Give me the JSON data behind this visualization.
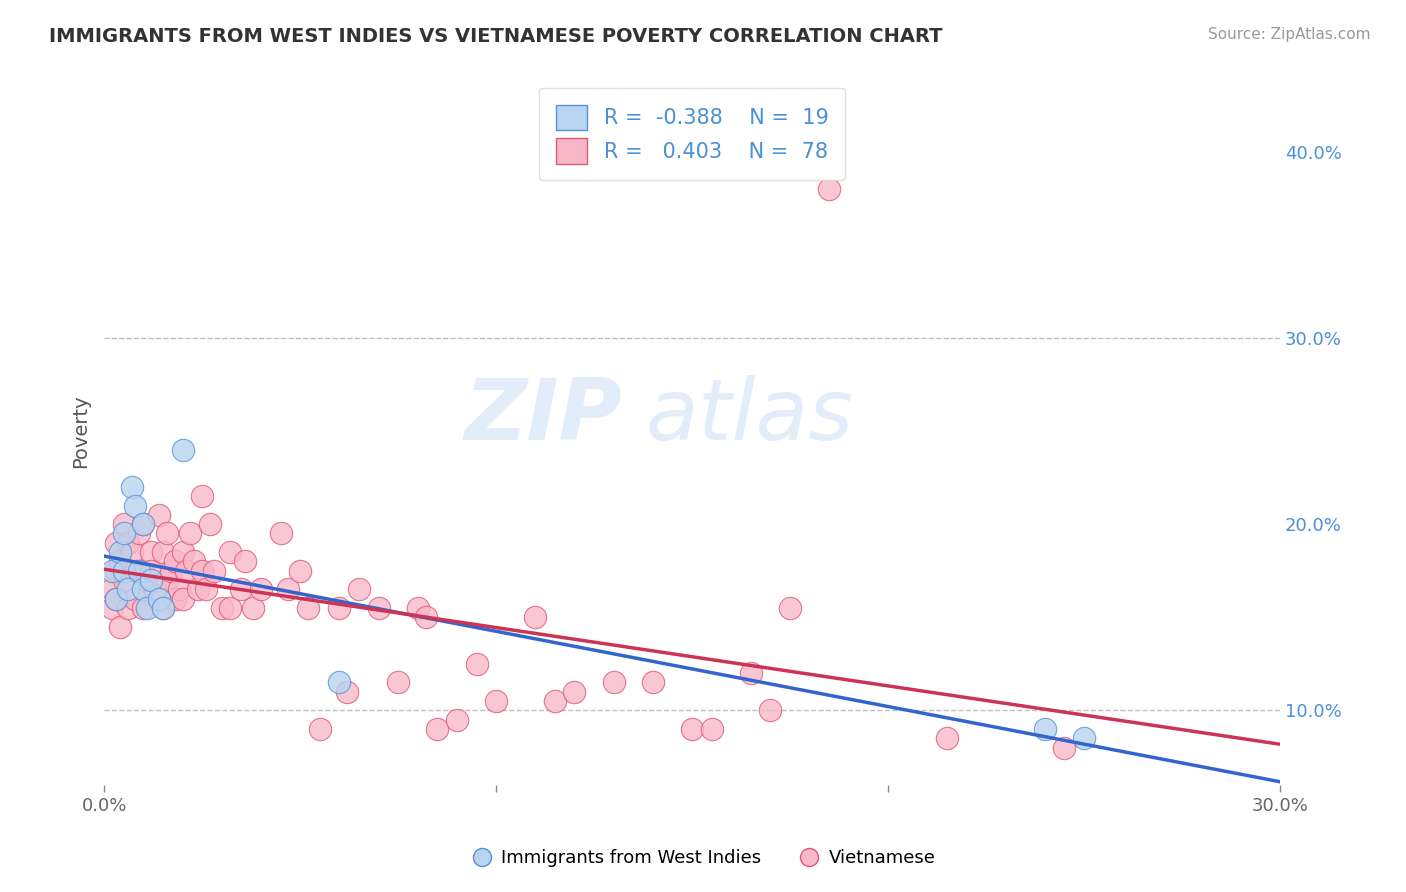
{
  "title": "IMMIGRANTS FROM WEST INDIES VS VIETNAMESE POVERTY CORRELATION CHART",
  "source": "Source: ZipAtlas.com",
  "ylabel": "Poverty",
  "ylabel_right_ticks": [
    "10.0%",
    "20.0%",
    "30.0%",
    "40.0%"
  ],
  "ylabel_right_vals": [
    0.1,
    0.2,
    0.3,
    0.4
  ],
  "xlim": [
    0.0,
    0.3
  ],
  "ylim": [
    0.06,
    0.44
  ],
  "legend_blue_r": "-0.388",
  "legend_blue_n": "19",
  "legend_pink_r": "0.403",
  "legend_pink_n": "78",
  "legend_label_blue": "Immigrants from West Indies",
  "legend_label_pink": "Vietnamese",
  "blue_fill_color": "#b8d4f0",
  "pink_fill_color": "#f8b8c8",
  "blue_edge_color": "#5590d8",
  "pink_edge_color": "#e05878",
  "blue_line_color": "#3366cc",
  "pink_line_color": "#cc3355",
  "watermark_zip": "ZIP",
  "watermark_atlas": "atlas",
  "background_color": "#ffffff",
  "blue_scatter_x": [
    0.002,
    0.003,
    0.004,
    0.005,
    0.005,
    0.006,
    0.007,
    0.008,
    0.009,
    0.01,
    0.01,
    0.011,
    0.012,
    0.014,
    0.015,
    0.02,
    0.06,
    0.24,
    0.25
  ],
  "blue_scatter_y": [
    0.175,
    0.16,
    0.185,
    0.195,
    0.175,
    0.165,
    0.22,
    0.21,
    0.175,
    0.165,
    0.2,
    0.155,
    0.17,
    0.16,
    0.155,
    0.24,
    0.115,
    0.09,
    0.085
  ],
  "pink_scatter_x": [
    0.002,
    0.002,
    0.003,
    0.003,
    0.003,
    0.004,
    0.004,
    0.005,
    0.005,
    0.006,
    0.006,
    0.007,
    0.008,
    0.008,
    0.009,
    0.01,
    0.01,
    0.01,
    0.011,
    0.012,
    0.012,
    0.013,
    0.014,
    0.015,
    0.015,
    0.016,
    0.016,
    0.017,
    0.018,
    0.018,
    0.019,
    0.02,
    0.02,
    0.021,
    0.022,
    0.023,
    0.024,
    0.025,
    0.025,
    0.026,
    0.027,
    0.028,
    0.03,
    0.032,
    0.032,
    0.035,
    0.036,
    0.038,
    0.04,
    0.045,
    0.047,
    0.05,
    0.052,
    0.055,
    0.06,
    0.062,
    0.065,
    0.07,
    0.075,
    0.08,
    0.082,
    0.085,
    0.09,
    0.095,
    0.1,
    0.11,
    0.115,
    0.12,
    0.13,
    0.14,
    0.15,
    0.155,
    0.165,
    0.17,
    0.175,
    0.185,
    0.215,
    0.245
  ],
  "pink_scatter_y": [
    0.165,
    0.155,
    0.175,
    0.19,
    0.16,
    0.18,
    0.145,
    0.2,
    0.17,
    0.19,
    0.155,
    0.185,
    0.175,
    0.16,
    0.195,
    0.175,
    0.155,
    0.2,
    0.17,
    0.185,
    0.175,
    0.165,
    0.205,
    0.185,
    0.155,
    0.17,
    0.195,
    0.175,
    0.16,
    0.18,
    0.165,
    0.185,
    0.16,
    0.175,
    0.195,
    0.18,
    0.165,
    0.215,
    0.175,
    0.165,
    0.2,
    0.175,
    0.155,
    0.185,
    0.155,
    0.165,
    0.18,
    0.155,
    0.165,
    0.195,
    0.165,
    0.175,
    0.155,
    0.09,
    0.155,
    0.11,
    0.165,
    0.155,
    0.115,
    0.155,
    0.15,
    0.09,
    0.095,
    0.125,
    0.105,
    0.15,
    0.105,
    0.11,
    0.115,
    0.115,
    0.09,
    0.09,
    0.12,
    0.1,
    0.155,
    0.38,
    0.085,
    0.08
  ],
  "dashed_line_y": 0.3,
  "dashed_line_y2": 0.1
}
